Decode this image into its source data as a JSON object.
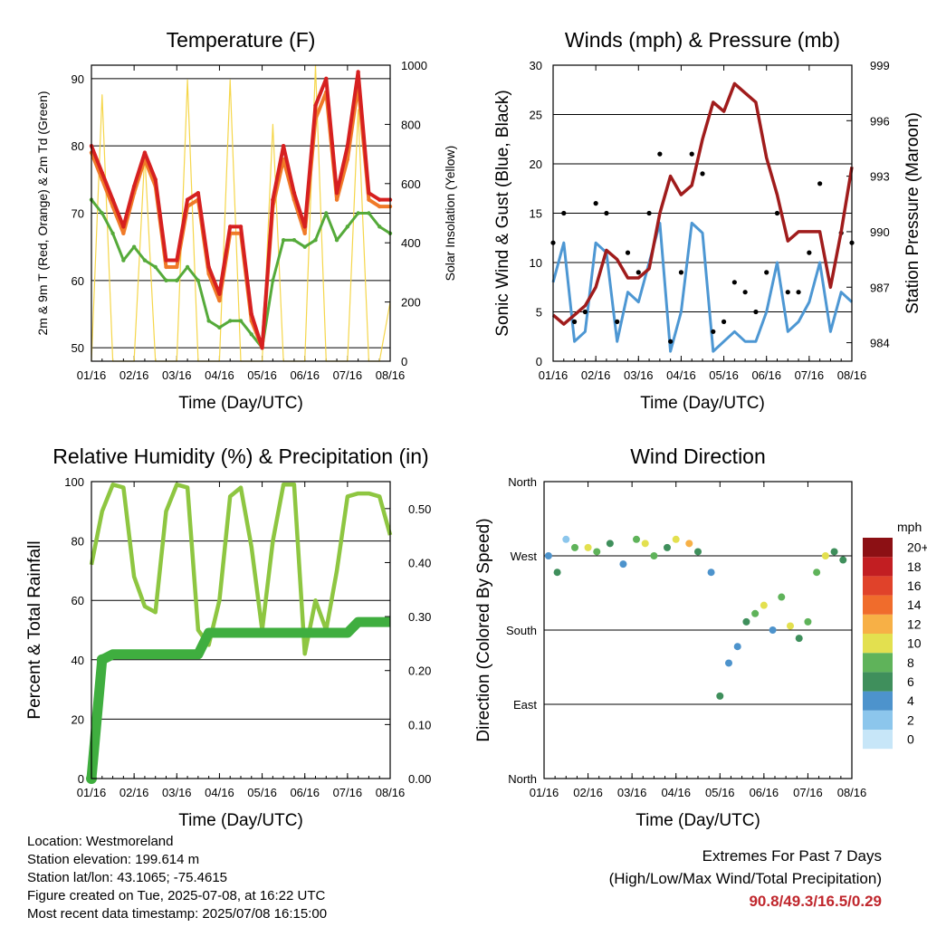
{
  "colors": {
    "temp_2m": "#d62020",
    "temp_9m": "#f07a28",
    "dewpoint": "#55aa3a",
    "solar": "#f5d64a",
    "wind": "#4d97d3",
    "gust": "#000000",
    "pressure": "#a01c1c",
    "rh": "#8ec641",
    "precip": "#3fae3f",
    "extremes_text": "#c0272d"
  },
  "x_ticks": [
    "01/16",
    "02/16",
    "03/16",
    "04/16",
    "05/16",
    "06/16",
    "07/16",
    "08/16"
  ],
  "chart_data": [
    {
      "type": "line",
      "title": "Temperature (F)",
      "xlabel": "Time (Day/UTC)",
      "ylabel": "2m & 9m T (Red, Orange) & 2m Td (Green)",
      "y2label": "Solar Insolation (Yellow)",
      "ylim": [
        48,
        92
      ],
      "yticks": [
        50,
        60,
        70,
        80,
        90
      ],
      "y2lim": [
        0,
        1000
      ],
      "y2ticks": [
        0,
        200,
        400,
        600,
        800,
        1000
      ],
      "x": [
        0,
        0.25,
        0.5,
        0.75,
        1,
        1.25,
        1.5,
        1.75,
        2,
        2.25,
        2.5,
        2.75,
        3,
        3.25,
        3.5,
        3.75,
        4,
        4.25,
        4.5,
        4.75,
        5,
        5.25,
        5.5,
        5.75,
        6,
        6.25,
        6.5,
        6.75,
        7
      ],
      "series": [
        {
          "name": "2m T",
          "color": "temp_2m",
          "values": [
            80,
            76,
            72,
            68,
            74,
            79,
            75,
            63,
            63,
            72,
            73,
            62,
            58,
            68,
            68,
            55,
            50,
            72,
            80,
            73,
            68,
            86,
            90,
            73,
            80,
            91,
            73,
            72,
            72
          ]
        },
        {
          "name": "9m T",
          "color": "temp_9m",
          "values": [
            79,
            75,
            71,
            67,
            73,
            78,
            74,
            62,
            62,
            71,
            72,
            61,
            57,
            67,
            67,
            54,
            50,
            71,
            78,
            72,
            67,
            84,
            88,
            72,
            78,
            89,
            72,
            71,
            71
          ]
        },
        {
          "name": "2m Td",
          "color": "dewpoint",
          "values": [
            72,
            70,
            67,
            63,
            65,
            63,
            62,
            60,
            60,
            62,
            60,
            54,
            53,
            54,
            54,
            52,
            50,
            60,
            66,
            66,
            65,
            66,
            70,
            66,
            68,
            70,
            70,
            68,
            67
          ]
        },
        {
          "name": "Solar Insolation",
          "color": "solar",
          "axis": "y2",
          "values": [
            0,
            900,
            0,
            0,
            0,
            700,
            0,
            0,
            0,
            950,
            0,
            0,
            0,
            950,
            0,
            0,
            0,
            800,
            0,
            0,
            0,
            1000,
            0,
            0,
            0,
            850,
            0,
            0,
            200
          ]
        }
      ]
    },
    {
      "type": "line",
      "title": "Winds (mph) & Pressure (mb)",
      "xlabel": "Time (Day/UTC)",
      "ylabel": "Sonic Wind & Gust (Blue, Black)",
      "y2label": "Station Pressure (Maroon)",
      "ylim": [
        0,
        30
      ],
      "yticks": [
        0,
        5,
        10,
        15,
        20,
        25,
        30
      ],
      "y2lim": [
        983,
        999
      ],
      "y2ticks": [
        984,
        987,
        990,
        993,
        996,
        999
      ],
      "x": [
        0,
        0.25,
        0.5,
        0.75,
        1,
        1.25,
        1.5,
        1.75,
        2,
        2.25,
        2.5,
        2.75,
        3,
        3.25,
        3.5,
        3.75,
        4,
        4.25,
        4.5,
        4.75,
        5,
        5.25,
        5.5,
        5.75,
        6,
        6.25,
        6.5,
        6.75,
        7
      ],
      "series": [
        {
          "name": "Sonic Wind",
          "color": "wind",
          "values": [
            8,
            12,
            2,
            3,
            12,
            11,
            2,
            7,
            6,
            10,
            14,
            1,
            5,
            14,
            13,
            1,
            2,
            3,
            2,
            2,
            5,
            10,
            3,
            4,
            6,
            10,
            3,
            7,
            6
          ]
        },
        {
          "name": "Gust",
          "color": "gust",
          "values": [
            12,
            15,
            4,
            5,
            16,
            15,
            4,
            11,
            9,
            15,
            21,
            2,
            9,
            21,
            19,
            3,
            4,
            8,
            7,
            5,
            9,
            15,
            7,
            7,
            11,
            18,
            8,
            13,
            12
          ]
        },
        {
          "name": "Station Pressure",
          "color": "pressure",
          "axis": "y2",
          "values": [
            985.5,
            985,
            985.5,
            986,
            987,
            989,
            988.5,
            987.5,
            987.5,
            988,
            991,
            993,
            992,
            992.5,
            995,
            997,
            996.5,
            998,
            997.5,
            997,
            994,
            992,
            989.5,
            990,
            990,
            990,
            987,
            990,
            993.5
          ]
        }
      ]
    },
    {
      "type": "line",
      "title": "Relative Humidity (%) & Precipitation (in)",
      "xlabel": "Time (Day/UTC)",
      "ylabel": "Percent & Total Rainfall",
      "ylim": [
        0,
        100
      ],
      "yticks": [
        0,
        20,
        40,
        60,
        80,
        100
      ],
      "y2lim": [
        0,
        0.55
      ],
      "y2ticks": [
        "0.00",
        "0.10",
        "0.20",
        "0.30",
        "0.40",
        "0.50"
      ],
      "x": [
        0,
        0.25,
        0.5,
        0.75,
        1,
        1.25,
        1.5,
        1.75,
        2,
        2.25,
        2.5,
        2.75,
        3,
        3.25,
        3.5,
        3.75,
        4,
        4.25,
        4.5,
        4.75,
        5,
        5.25,
        5.5,
        5.75,
        6,
        6.25,
        6.5,
        6.75,
        7
      ],
      "series": [
        {
          "name": "Relative Humidity",
          "color": "rh",
          "values": [
            72,
            90,
            99,
            98,
            68,
            58,
            56,
            90,
            99,
            98,
            50,
            45,
            60,
            95,
            98,
            78,
            50,
            80,
            99,
            99,
            42,
            60,
            50,
            70,
            95,
            96,
            96,
            95,
            82
          ]
        },
        {
          "name": "Total Precipitation",
          "color": "precip",
          "axis": "y2",
          "values": [
            0,
            0.22,
            0.23,
            0.23,
            0.23,
            0.23,
            0.23,
            0.23,
            0.23,
            0.23,
            0.23,
            0.27,
            0.27,
            0.27,
            0.27,
            0.27,
            0.27,
            0.27,
            0.27,
            0.27,
            0.27,
            0.27,
            0.27,
            0.27,
            0.27,
            0.29,
            0.29,
            0.29,
            0.29
          ]
        }
      ]
    },
    {
      "type": "scatter",
      "title": "Wind Direction",
      "xlabel": "Time (Day/UTC)",
      "ylabel": "Direction (Colored By Speed)",
      "yticks": [
        "North",
        "East",
        "South",
        "West",
        "North"
      ],
      "ylim": [
        0,
        360
      ],
      "colorbar": {
        "title": "mph",
        "labels": [
          "0",
          "2",
          "4",
          "6",
          "8",
          "10",
          "12",
          "14",
          "16",
          "18",
          "20+"
        ],
        "colors": [
          "#c7e6f8",
          "#8cc6ec",
          "#4d93cc",
          "#3f8f5c",
          "#5fb35a",
          "#e3e04f",
          "#f7b046",
          "#f06c2c",
          "#e0422a",
          "#c21e22",
          "#8c1014"
        ]
      },
      "x": [
        0.1,
        0.3,
        0.5,
        0.7,
        1.0,
        1.2,
        1.5,
        1.8,
        2.1,
        2.3,
        2.5,
        2.8,
        3.0,
        3.3,
        3.5,
        3.8,
        4.0,
        4.2,
        4.4,
        4.6,
        4.8,
        5.0,
        5.2,
        5.4,
        5.6,
        5.8,
        6.0,
        6.2,
        6.4,
        6.6,
        6.8
      ],
      "y": [
        270,
        250,
        290,
        280,
        280,
        275,
        285,
        260,
        290,
        285,
        270,
        280,
        290,
        285,
        275,
        250,
        100,
        140,
        160,
        190,
        200,
        210,
        180,
        220,
        185,
        170,
        190,
        250,
        270,
        275,
        265
      ],
      "speed": [
        4,
        5,
        2,
        8,
        10,
        7,
        6,
        3,
        8,
        10,
        7,
        5,
        9,
        12,
        6,
        4,
        5,
        4,
        3,
        6,
        8,
        9,
        4,
        8,
        10,
        6,
        7,
        8,
        9,
        6,
        5
      ]
    }
  ],
  "info": {
    "location": "Location: Westmoreland",
    "elevation": "Station elevation: 199.614 m",
    "latlon": "Station lat/lon: 43.1065; -75.4615",
    "created": "Figure created on Tue, 2025-07-08, at 16:22 UTC",
    "recent": "Most recent data timestamp: 2025/07/08 16:15:00"
  },
  "extremes": {
    "line1": "Extremes For Past 7 Days",
    "line2": "(High/Low/Max Wind/Total Precipitation)",
    "values": "90.8/49.3/16.5/0.29"
  }
}
